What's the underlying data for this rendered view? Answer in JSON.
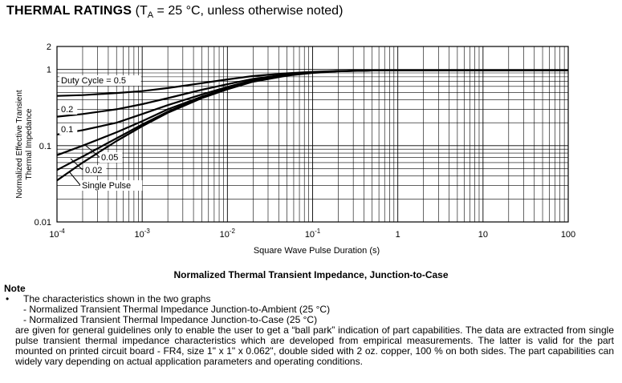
{
  "heading": {
    "title": "THERMAL RATINGS",
    "condition_open": "(T",
    "condition_sub": "A",
    "condition_rest": " = 25 °C, unless otherwise noted)"
  },
  "chart_data": {
    "type": "line",
    "title": "",
    "xlabel": "Square Wave Pulse Duration (s)",
    "ylabel_line1": "Normalized Effective Transient",
    "ylabel_line2": "Thermal Impedance",
    "x_scale": "log",
    "y_scale": "log",
    "xlim": [
      0.0001,
      100
    ],
    "ylim": [
      0.01,
      2
    ],
    "grid": true,
    "x_ticks": [
      {
        "base": "10",
        "exp": "-4"
      },
      {
        "base": "10",
        "exp": "-3"
      },
      {
        "base": "10",
        "exp": "-2"
      },
      {
        "base": "10",
        "exp": "-1"
      },
      {
        "base": "1",
        "exp": ""
      },
      {
        "base": "10",
        "exp": ""
      },
      {
        "base": "100",
        "exp": ""
      }
    ],
    "y_ticks": [
      "0.01",
      "0.1",
      "1",
      "2"
    ],
    "series": [
      {
        "name": "Duty Cycle = 0.5",
        "x": [
          0.0001,
          0.0002,
          0.0005,
          0.001,
          0.002,
          0.005,
          0.01,
          0.02,
          0.05,
          0.1,
          0.2,
          0.5,
          1,
          10,
          100
        ],
        "y": [
          0.45,
          0.46,
          0.49,
          0.52,
          0.57,
          0.66,
          0.74,
          0.82,
          0.89,
          0.93,
          0.955,
          0.97,
          0.975,
          0.975,
          0.975
        ]
      },
      {
        "name": "0.2",
        "x": [
          0.0001,
          0.0002,
          0.0005,
          0.001,
          0.002,
          0.005,
          0.01,
          0.02,
          0.05,
          0.1,
          0.2,
          0.5,
          1,
          10,
          100
        ],
        "y": [
          0.24,
          0.26,
          0.3,
          0.35,
          0.42,
          0.54,
          0.64,
          0.75,
          0.86,
          0.92,
          0.95,
          0.97,
          0.975,
          0.975,
          0.975
        ]
      },
      {
        "name": "0.1",
        "x": [
          0.0001,
          0.0002,
          0.0005,
          0.001,
          0.002,
          0.005,
          0.01,
          0.02,
          0.05,
          0.1,
          0.2,
          0.5,
          1,
          10,
          100
        ],
        "y": [
          0.14,
          0.16,
          0.2,
          0.26,
          0.34,
          0.47,
          0.59,
          0.72,
          0.85,
          0.91,
          0.95,
          0.97,
          0.975,
          0.975,
          0.975
        ]
      },
      {
        "name": "0.05",
        "x": [
          0.0001,
          0.0002,
          0.0005,
          0.001,
          0.002,
          0.005,
          0.01,
          0.02,
          0.05,
          0.1,
          0.2,
          0.5,
          1,
          10,
          100
        ],
        "y": [
          0.075,
          0.1,
          0.15,
          0.21,
          0.3,
          0.44,
          0.57,
          0.71,
          0.84,
          0.91,
          0.95,
          0.97,
          0.975,
          0.975,
          0.975
        ]
      },
      {
        "name": "0.02",
        "x": [
          0.0001,
          0.0002,
          0.0005,
          0.001,
          0.002,
          0.005,
          0.01,
          0.02,
          0.05,
          0.1,
          0.2,
          0.5,
          1,
          10,
          100
        ],
        "y": [
          0.048,
          0.072,
          0.125,
          0.19,
          0.28,
          0.43,
          0.56,
          0.7,
          0.84,
          0.91,
          0.95,
          0.97,
          0.975,
          0.975,
          0.975
        ]
      },
      {
        "name": "Single Pulse",
        "x": [
          0.0001,
          0.0002,
          0.0005,
          0.001,
          0.002,
          0.005,
          0.01,
          0.02,
          0.05,
          0.1,
          0.2,
          0.5,
          1,
          10,
          100
        ],
        "y": [
          0.035,
          0.06,
          0.115,
          0.18,
          0.27,
          0.42,
          0.55,
          0.69,
          0.83,
          0.9,
          0.945,
          0.97,
          0.975,
          0.975,
          0.975
        ]
      }
    ]
  },
  "caption": "Normalized Thermal Transient Impedance, Junction-to-Case",
  "note": {
    "title": "Note",
    "bullet": "•",
    "line1": "The characteristics shown in the two graphs",
    "line2": "- Normalized Transient Thermal Impedance Junction-to-Ambient (25 °C)",
    "line3": "- Normalized Transient Thermal Impedance Junction-to-Case (25 °C)",
    "paragraph": "are given for general guidelines only to enable the user to get a “ball park” indication of part capabilities. The data are extracted from single pulse transient thermal impedance characteristics which are developed from empirical measurements. The latter is valid for the part mounted on printed circuit board - FR4, size 1\" x 1\" x 0.062\", double sided with 2 oz. copper, 100 % on both sides. The part capabilities can widely vary depending on actual application parameters and operating conditions."
  }
}
